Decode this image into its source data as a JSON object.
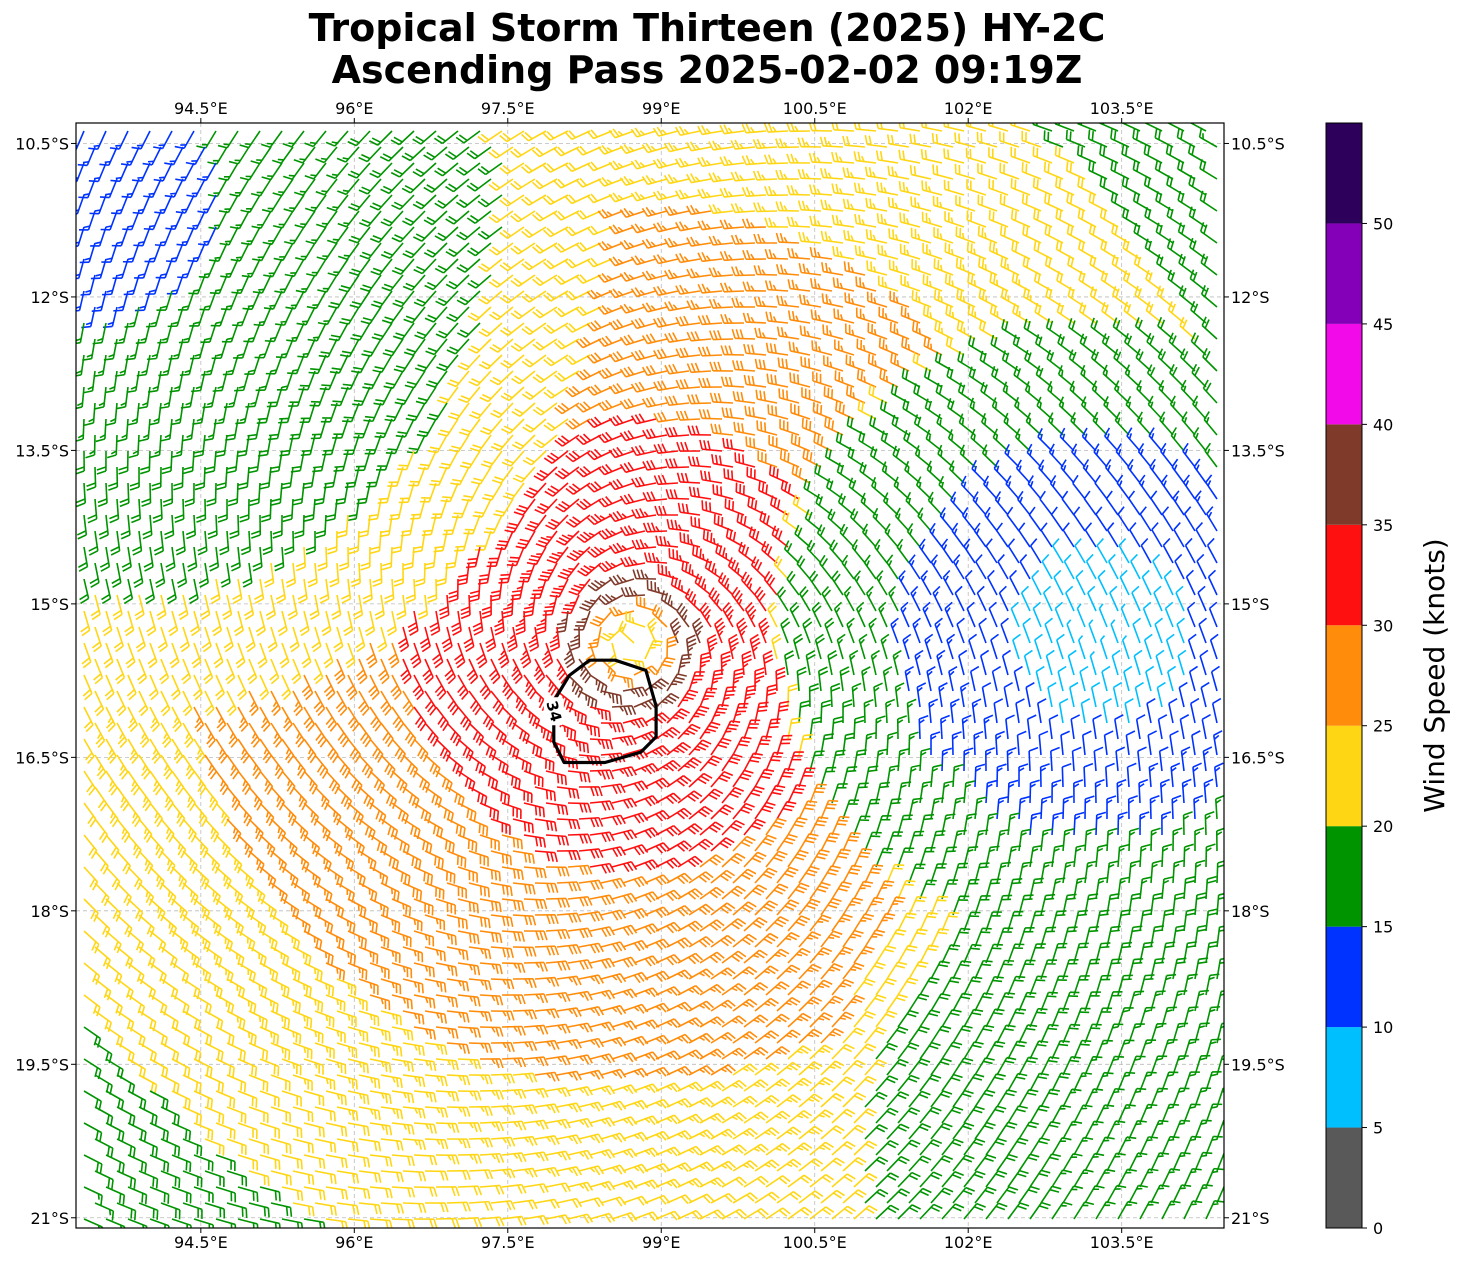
{
  "title": {
    "line1": "Tropical Storm Thirteen (2025) HY-2C",
    "line2": "Ascending Pass 2025-02-02 09:19Z"
  },
  "map": {
    "lon_range": [
      93.28,
      104.5
    ],
    "lat_range": [
      -21.1,
      -10.3
    ],
    "lon_ticks": [
      {
        "value": 94.5,
        "label": "94.5°E"
      },
      {
        "value": 96,
        "label": "96°E"
      },
      {
        "value": 97.5,
        "label": "97.5°E"
      },
      {
        "value": 99,
        "label": "99°E"
      },
      {
        "value": 100.5,
        "label": "100.5°E"
      },
      {
        "value": 102,
        "label": "102°E"
      },
      {
        "value": 103.5,
        "label": "103.5°E"
      }
    ],
    "lat_ticks": [
      {
        "value": -10.5,
        "label": "10.5°S"
      },
      {
        "value": -12,
        "label": "12°S"
      },
      {
        "value": -13.5,
        "label": "13.5°S"
      },
      {
        "value": -15,
        "label": "15°S"
      },
      {
        "value": -16.5,
        "label": "16.5°S"
      },
      {
        "value": -18,
        "label": "18°S"
      },
      {
        "value": -19.5,
        "label": "19.5°S"
      },
      {
        "value": -21,
        "label": "21°S"
      }
    ],
    "gridlines": true,
    "storm_center": {
      "lon": 98.7,
      "lat": -15.4
    },
    "secondary_low": {
      "lon": 103.3,
      "lat": -15.4
    },
    "contour": {
      "level_label": "34",
      "color": "#000000"
    }
  },
  "colorbar": {
    "label": "Wind Speed (knots)",
    "bins": [
      {
        "from": 0,
        "to": 5,
        "color": "#595959"
      },
      {
        "from": 5,
        "to": 10,
        "color": "#00bfff"
      },
      {
        "from": 10,
        "to": 15,
        "color": "#0033ff"
      },
      {
        "from": 15,
        "to": 20,
        "color": "#009400"
      },
      {
        "from": 20,
        "to": 25,
        "color": "#ffd614"
      },
      {
        "from": 25,
        "to": 30,
        "color": "#ff8c0a"
      },
      {
        "from": 30,
        "to": 35,
        "color": "#ff1010"
      },
      {
        "from": 35,
        "to": 40,
        "color": "#7f3a2a"
      },
      {
        "from": 40,
        "to": 45,
        "color": "#f20ae8"
      },
      {
        "from": 45,
        "to": 50,
        "color": "#8400b8"
      },
      {
        "from": 50,
        "to": 55,
        "color": "#2d005c"
      }
    ],
    "tick_labels": [
      "0",
      "5",
      "10",
      "15",
      "20",
      "25",
      "30",
      "35",
      "40",
      "45",
      "50"
    ]
  }
}
